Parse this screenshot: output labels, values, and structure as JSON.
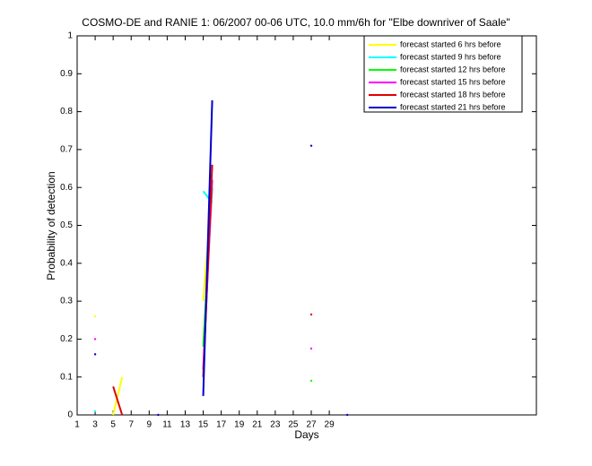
{
  "chart_data": {
    "type": "line",
    "title": "COSMO-DE and RANIE 1: 06/2007 00-06 UTC, 10.0 mm/6h for \"Elbe downriver of Saale\"",
    "x_label": "Days",
    "y_label": "Probability of detection",
    "x": [
      1,
      2,
      3,
      4,
      5,
      6,
      7,
      8,
      9,
      10,
      11,
      12,
      13,
      14,
      15,
      16,
      17,
      18,
      19,
      20,
      21,
      22,
      23,
      24,
      25,
      26,
      27,
      28,
      29,
      30,
      31
    ],
    "series": [
      {
        "name": "forecast started 6 hrs before",
        "color": "#ffff00",
        "values": [
          null,
          null,
          0.26,
          null,
          0,
          0.1,
          null,
          null,
          null,
          null,
          null,
          null,
          null,
          null,
          0.3,
          0.6,
          null,
          null,
          null,
          null,
          null,
          null,
          null,
          null,
          null,
          null,
          null,
          null,
          null,
          null,
          null
        ]
      },
      {
        "name": "forecast started 9 hrs before",
        "color": "#00ffff",
        "values": [
          null,
          null,
          0.01,
          null,
          null,
          null,
          null,
          null,
          null,
          null,
          null,
          null,
          null,
          null,
          0.59,
          0.56,
          null,
          null,
          null,
          null,
          null,
          null,
          null,
          null,
          null,
          null,
          null,
          null,
          null,
          null,
          null
        ]
      },
      {
        "name": "forecast started 12 hrs before",
        "color": "#00ff00",
        "values": [
          null,
          null,
          null,
          null,
          null,
          null,
          null,
          null,
          null,
          null,
          null,
          null,
          null,
          null,
          0.18,
          0.6,
          null,
          null,
          null,
          null,
          null,
          null,
          null,
          null,
          null,
          null,
          0.09,
          null,
          null,
          null,
          null
        ]
      },
      {
        "name": "forecast started 15 hrs before",
        "color": "#ff00ff",
        "values": [
          null,
          null,
          0.2,
          null,
          null,
          null,
          null,
          null,
          null,
          null,
          null,
          null,
          null,
          null,
          0.12,
          0.62,
          null,
          null,
          null,
          null,
          null,
          null,
          null,
          null,
          null,
          null,
          0.175,
          null,
          null,
          null,
          null
        ]
      },
      {
        "name": "forecast started 18 hrs before",
        "color": "#e00000",
        "values": [
          null,
          null,
          null,
          null,
          0.075,
          0,
          null,
          null,
          null,
          null,
          null,
          null,
          null,
          null,
          0.1,
          0.66,
          null,
          null,
          null,
          null,
          null,
          null,
          null,
          null,
          null,
          null,
          0.265,
          null,
          null,
          null,
          null
        ]
      },
      {
        "name": "forecast started 21 hrs before",
        "color": "#0000cc",
        "values": [
          null,
          null,
          0.16,
          null,
          null,
          null,
          null,
          null,
          null,
          0,
          null,
          null,
          null,
          null,
          0.05,
          0.83,
          null,
          null,
          null,
          null,
          null,
          null,
          null,
          null,
          null,
          null,
          0.71,
          null,
          null,
          null,
          0
        ]
      }
    ],
    "xlim": [
      1,
      52
    ],
    "ylim": [
      0,
      1
    ],
    "xticks": [
      1,
      3,
      5,
      7,
      9,
      11,
      13,
      15,
      17,
      19,
      21,
      23,
      25,
      27,
      29
    ],
    "yticks": [
      0,
      0.1,
      0.2,
      0.3,
      0.4,
      0.5,
      0.6,
      0.7,
      0.8,
      0.9,
      1
    ],
    "legend": "upper right"
  }
}
